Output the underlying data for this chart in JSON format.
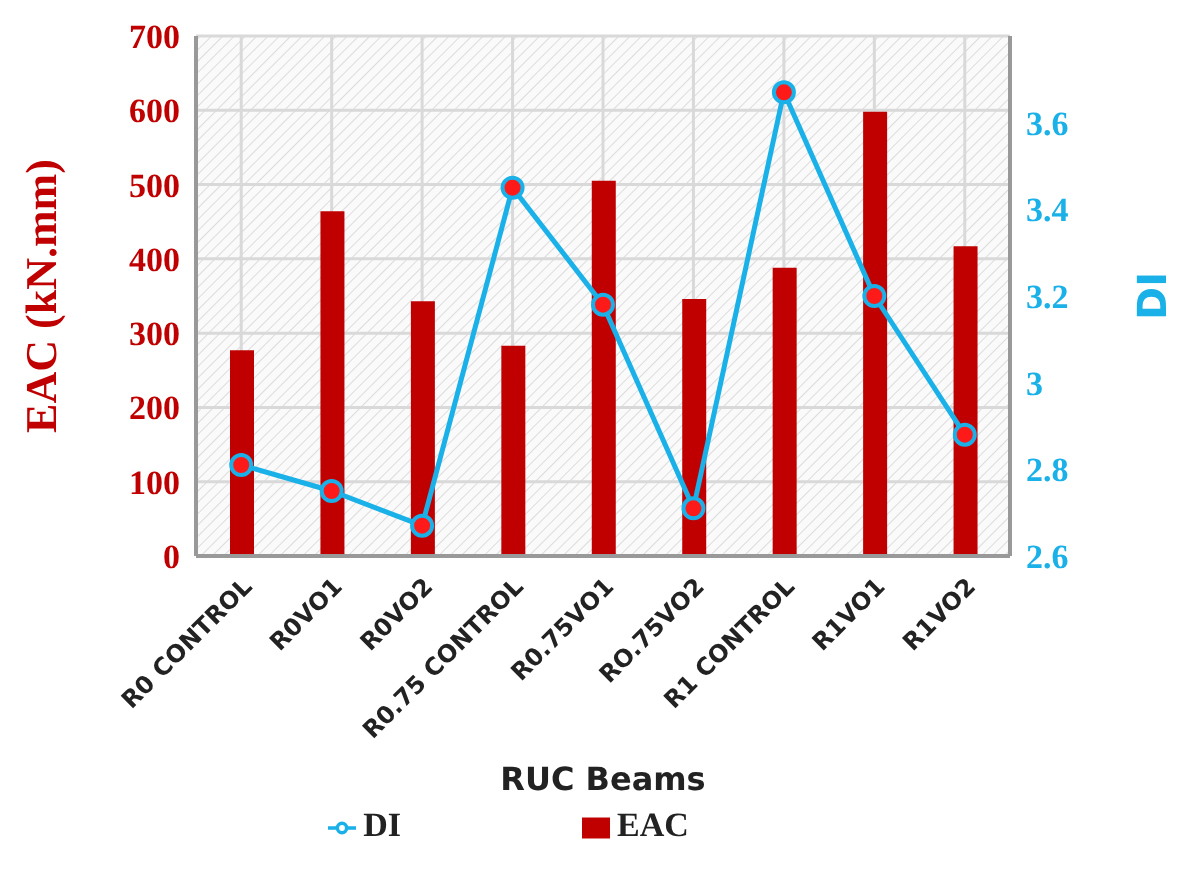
{
  "chart_data": {
    "type": "bar",
    "xlabel": "RUC Beams",
    "ylabel": "EAC (kN.mm)",
    "y2label": "DI",
    "categories": [
      "R0 CONTROL",
      "R0VO1",
      "R0VO2",
      "R0.75 CONTROL",
      "R0.75VO1",
      "RO.75VO2",
      "R1 CONTROL",
      "R1VO1",
      "R1VO2"
    ],
    "series": [
      {
        "name": "EAC",
        "color": "#c00000",
        "values": [
          277,
          464,
          343,
          283,
          505,
          346,
          388,
          598,
          417
        ]
      },
      {
        "name": "DI",
        "type": "line",
        "axis": "y2",
        "color": "#1ab0e8",
        "values": [
          2.81,
          2.75,
          2.67,
          3.45,
          3.18,
          2.71,
          3.67,
          3.2,
          2.88
        ]
      }
    ],
    "ylim": [
      0,
      700
    ],
    "yticks": [
      0,
      100,
      200,
      300,
      400,
      500,
      600,
      700
    ],
    "y2lim": [
      2.6,
      3.8
    ],
    "y2ticks": [
      2.6,
      2.8,
      3,
      3.2,
      3.4,
      3.6
    ],
    "grid": true,
    "legend": "bottom",
    "marker": "circle",
    "line_style": "solid"
  }
}
